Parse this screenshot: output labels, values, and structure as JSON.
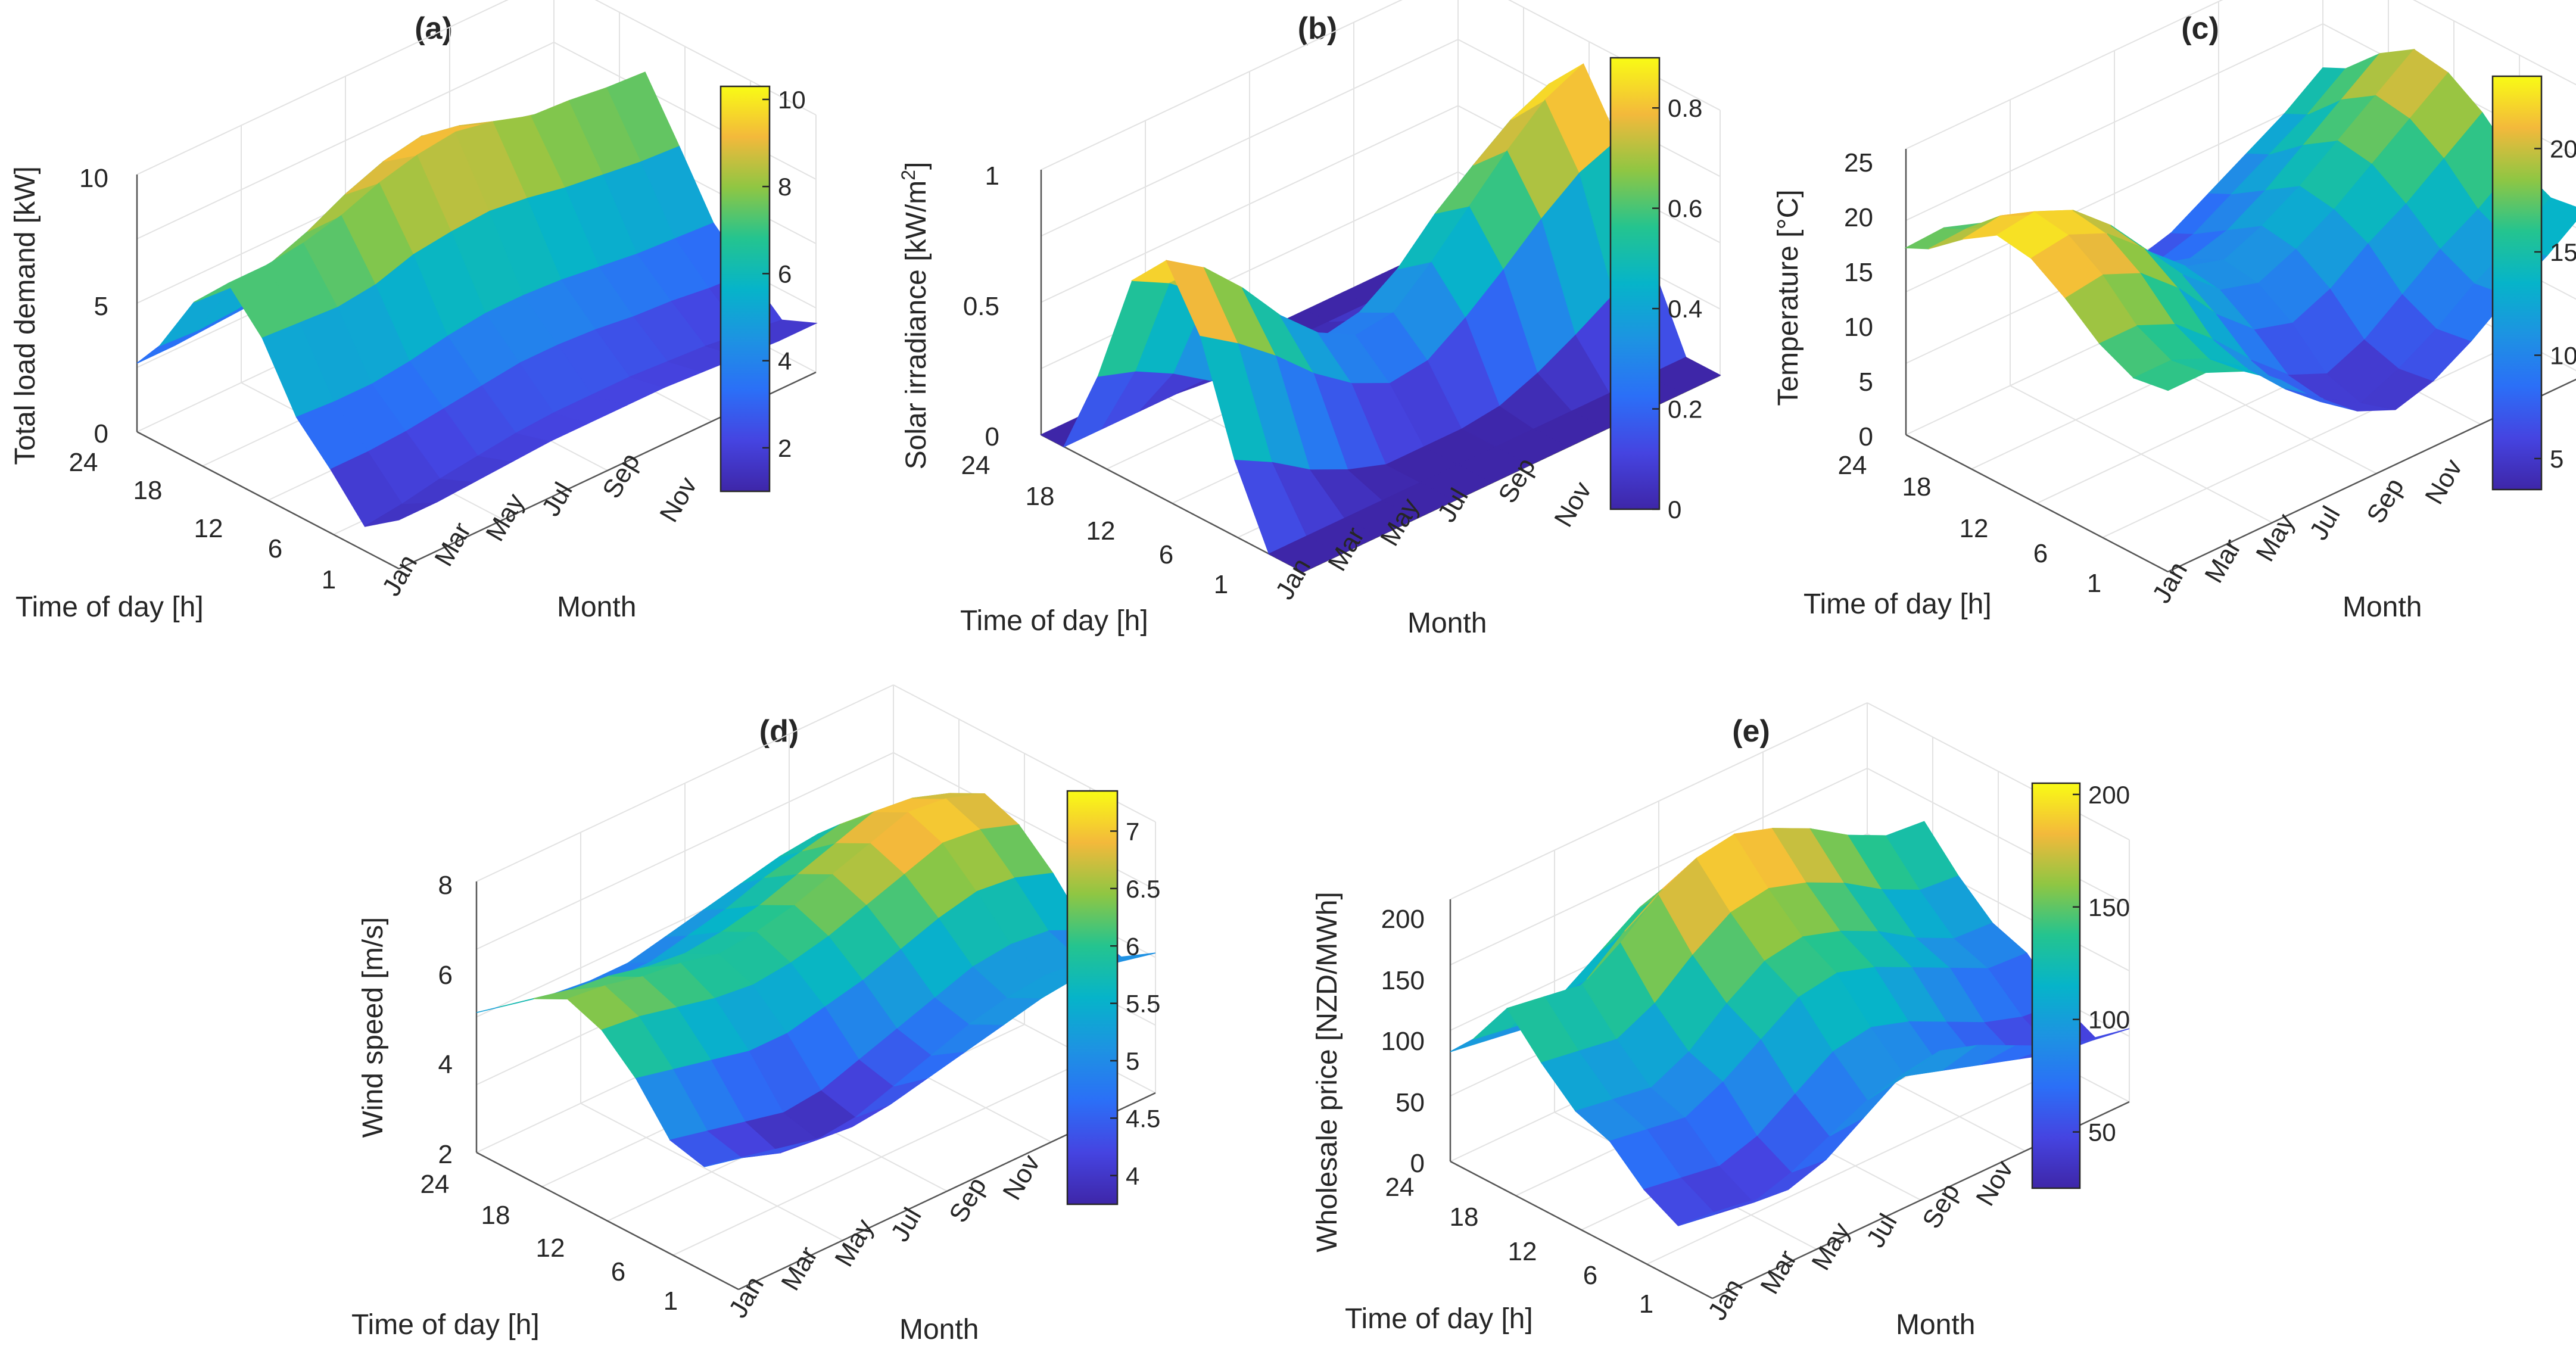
{
  "charts": [
    {
      "id": "a",
      "title": "(a)",
      "type": "surface3d",
      "zlabel": "Total load demand [kW]",
      "zlim": [
        0,
        10.5
      ],
      "zticks": [
        "0",
        "5",
        "10"
      ],
      "zticks_values": [
        0,
        5,
        10
      ],
      "colorbar_range": [
        1,
        10.3
      ],
      "colorbar_ticks": [
        "2",
        "4",
        "6",
        "8",
        "10"
      ],
      "colorbar_ticks_values": [
        2,
        4,
        6,
        8,
        10
      ]
    },
    {
      "id": "b",
      "title": "(b)",
      "type": "surface3d",
      "zlabel": "Solar irradiance [kW/m",
      "zlabel_sup": "2",
      "zlabel_end": "]",
      "zlim": [
        0,
        1.05
      ],
      "zticks": [
        "0",
        "0.5",
        "1"
      ],
      "zticks_values": [
        0,
        0.5,
        1
      ],
      "colorbar_range": [
        0,
        0.9
      ],
      "colorbar_ticks": [
        "0",
        "0.2",
        "0.4",
        "0.6",
        "0.8"
      ],
      "colorbar_ticks_values": [
        0,
        0.2,
        0.4,
        0.6,
        0.8
      ]
    },
    {
      "id": "c",
      "title": "(c)",
      "type": "surface3d",
      "zlabel": "Temperature [°C]",
      "zlim": [
        0,
        26
      ],
      "zticks": [
        "0",
        "5",
        "10",
        "15",
        "20",
        "25"
      ],
      "zticks_values": [
        0,
        5,
        10,
        15,
        20,
        25
      ],
      "colorbar_range": [
        3.5,
        23.5
      ],
      "colorbar_ticks": [
        "5",
        "10",
        "15",
        "20"
      ],
      "colorbar_ticks_values": [
        5,
        10,
        15,
        20
      ]
    },
    {
      "id": "d",
      "title": "(d)",
      "type": "surface3d",
      "zlabel": "Wind speed [m/s]",
      "zlim": [
        2,
        8.2
      ],
      "zticks": [
        "2",
        "4",
        "6",
        "8"
      ],
      "zticks_values": [
        2,
        4,
        6,
        8
      ],
      "colorbar_range": [
        3.75,
        7.35
      ],
      "colorbar_ticks": [
        "4",
        "4.5",
        "5",
        "5.5",
        "6",
        "6.5",
        "7"
      ],
      "colorbar_ticks_values": [
        4,
        4.5,
        5,
        5.5,
        6,
        6.5,
        7
      ]
    },
    {
      "id": "e",
      "title": "(e)",
      "type": "surface3d",
      "zlabel": "Wholesale price [NZD/MWh]",
      "zlim": [
        0,
        215
      ],
      "zticks": [
        "0",
        "50",
        "100",
        "150",
        "200"
      ],
      "zticks_values": [
        0,
        50,
        100,
        150,
        200
      ],
      "colorbar_range": [
        25,
        205
      ],
      "colorbar_ticks": [
        "50",
        "100",
        "150",
        "200"
      ],
      "colorbar_ticks_values": [
        50,
        100,
        150,
        200
      ]
    }
  ],
  "shared": {
    "xlabel": "Time of day [h]",
    "ylabel": "Month",
    "hour_ticks": [
      "24",
      "18",
      "12",
      "6",
      "1"
    ],
    "hour_ticks_values": [
      24,
      18,
      12,
      6,
      1
    ],
    "month_ticks": [
      "Jan",
      "Mar",
      "May",
      "Jul",
      "Sep",
      "Nov"
    ],
    "month_ticks_values": [
      1,
      3,
      5,
      7,
      9,
      11
    ],
    "colormap": "parula"
  },
  "chart_data": [
    {
      "panel": "a",
      "type": "surface3d",
      "title": "(a)",
      "x": "hour 1-24",
      "y": "month 1-12",
      "z": "Total load demand [kW]",
      "months": [
        1,
        2,
        3,
        4,
        5,
        6,
        7,
        8,
        9,
        10,
        11,
        12
      ],
      "hours": [
        1,
        4,
        7,
        10,
        13,
        16,
        19,
        22,
        24
      ],
      "values": [
        [
          2.0,
          1.0,
          2.6,
          4.0,
          6.5,
          8.0,
          6.5,
          4.0,
          2.8
        ],
        [
          2.0,
          1.2,
          2.6,
          3.9,
          6.4,
          8.0,
          6.4,
          3.9,
          2.8
        ],
        [
          2.1,
          1.5,
          2.7,
          3.9,
          6.3,
          8.2,
          6.6,
          4.0,
          2.9
        ],
        [
          2.2,
          1.7,
          2.9,
          4.1,
          6.5,
          8.6,
          7.2,
          4.3,
          3.0
        ],
        [
          2.3,
          1.9,
          3.1,
          4.4,
          7.0,
          9.2,
          8.0,
          4.7,
          3.1
        ],
        [
          2.3,
          2.0,
          3.3,
          4.6,
          7.2,
          9.6,
          8.6,
          5.0,
          3.2
        ],
        [
          2.3,
          2.0,
          3.3,
          4.6,
          7.3,
          9.8,
          8.9,
          5.0,
          3.2
        ],
        [
          2.3,
          2.0,
          3.2,
          4.5,
          7.1,
          9.5,
          8.6,
          4.9,
          3.1
        ],
        [
          2.2,
          1.9,
          3.0,
          4.3,
          6.8,
          9.0,
          8.0,
          4.6,
          3.0
        ],
        [
          2.1,
          1.8,
          2.9,
          4.1,
          6.6,
          8.9,
          7.6,
          4.4,
          2.9
        ],
        [
          2.0,
          1.6,
          2.7,
          4.0,
          6.4,
          8.7,
          7.2,
          4.2,
          2.8
        ],
        [
          2.0,
          1.4,
          2.6,
          3.9,
          6.3,
          8.6,
          7.0,
          4.1,
          2.8
        ]
      ]
    },
    {
      "panel": "b",
      "type": "surface3d",
      "title": "(b)",
      "x": "hour 1-24",
      "y": "month 1-12",
      "z": "Solar irradiance [kW/m2]",
      "months": [
        1,
        2,
        3,
        4,
        5,
        6,
        7,
        8,
        9,
        10,
        11,
        12
      ],
      "hours": [
        1,
        4,
        7,
        10,
        13,
        16,
        19,
        22,
        24
      ],
      "values": [
        [
          0.0,
          0.0,
          0.3,
          0.72,
          0.95,
          0.8,
          0.35,
          0.0,
          0.0
        ],
        [
          0.0,
          0.0,
          0.22,
          0.62,
          0.85,
          0.72,
          0.3,
          0.0,
          0.0
        ],
        [
          0.0,
          0.0,
          0.12,
          0.5,
          0.7,
          0.6,
          0.22,
          0.0,
          0.0
        ],
        [
          0.0,
          0.0,
          0.05,
          0.36,
          0.52,
          0.42,
          0.12,
          0.0,
          0.0
        ],
        [
          0.0,
          0.0,
          0.0,
          0.25,
          0.38,
          0.3,
          0.05,
          0.0,
          0.0
        ],
        [
          0.0,
          0.0,
          0.0,
          0.18,
          0.3,
          0.22,
          0.02,
          0.0,
          0.0
        ],
        [
          0.0,
          0.0,
          0.0,
          0.2,
          0.32,
          0.25,
          0.03,
          0.0,
          0.0
        ],
        [
          0.0,
          0.0,
          0.02,
          0.3,
          0.45,
          0.35,
          0.08,
          0.0,
          0.0
        ],
        [
          0.0,
          0.0,
          0.08,
          0.42,
          0.6,
          0.5,
          0.16,
          0.0,
          0.0
        ],
        [
          0.0,
          0.0,
          0.16,
          0.55,
          0.75,
          0.62,
          0.25,
          0.0,
          0.0
        ],
        [
          0.0,
          0.0,
          0.25,
          0.66,
          0.88,
          0.73,
          0.32,
          0.0,
          0.0
        ],
        [
          0.0,
          0.0,
          0.3,
          0.72,
          0.95,
          0.8,
          0.36,
          0.0,
          0.0
        ]
      ]
    },
    {
      "panel": "c",
      "type": "surface3d",
      "title": "(c)",
      "x": "hour 1-24",
      "y": "month 1-12",
      "z": "Temperature [°C]",
      "months": [
        1,
        2,
        3,
        4,
        5,
        6,
        7,
        8,
        9,
        10,
        11,
        12
      ],
      "hours": [
        1,
        4,
        7,
        10,
        13,
        16,
        19,
        22,
        24
      ],
      "values": [
        [
          16.5,
          16.0,
          17.5,
          20.0,
          22.0,
          22.5,
          20.5,
          18.0,
          17.0
        ],
        [
          16.5,
          16.0,
          17.5,
          20.5,
          22.5,
          23.0,
          21.0,
          18.2,
          17.2
        ],
        [
          15.0,
          14.5,
          16.0,
          19.0,
          21.0,
          21.5,
          19.5,
          17.0,
          16.0
        ],
        [
          12.5,
          12.0,
          13.0,
          16.0,
          18.0,
          18.5,
          16.5,
          14.5,
          13.5
        ],
        [
          9.0,
          8.5,
          9.5,
          12.0,
          14.0,
          14.5,
          12.5,
          11.0,
          10.0
        ],
        [
          6.5,
          6.0,
          6.5,
          9.0,
          11.0,
          11.5,
          10.0,
          8.5,
          7.5
        ],
        [
          5.0,
          4.0,
          5.0,
          8.0,
          10.0,
          10.5,
          9.0,
          7.0,
          6.0
        ],
        [
          6.0,
          5.5,
          6.5,
          9.5,
          11.5,
          12.0,
          10.0,
          8.0,
          7.0
        ],
        [
          8.0,
          7.5,
          9.0,
          12.0,
          13.5,
          14.0,
          12.0,
          10.0,
          9.0
        ],
        [
          10.5,
          10.0,
          11.5,
          14.0,
          16.0,
          16.5,
          14.5,
          12.0,
          11.0
        ],
        [
          12.5,
          12.0,
          13.5,
          16.5,
          18.5,
          19.0,
          17.0,
          14.0,
          13.0
        ],
        [
          15.0,
          14.5,
          16.0,
          19.0,
          21.0,
          21.5,
          19.5,
          16.5,
          15.5
        ]
      ]
    },
    {
      "panel": "d",
      "type": "surface3d",
      "title": "(d)",
      "x": "hour 1-24",
      "y": "month 1-12",
      "z": "Wind speed [m/s]",
      "months": [
        1,
        2,
        3,
        4,
        5,
        6,
        7,
        8,
        9,
        10,
        11,
        12
      ],
      "hours": [
        1,
        4,
        7,
        10,
        13,
        16,
        19,
        22,
        24
      ],
      "values": [
        [
          5.0,
          4.4,
          4.6,
          5.6,
          6.3,
          6.6,
          6.2,
          5.6,
          5.2
        ],
        [
          4.8,
          4.2,
          4.4,
          5.4,
          6.2,
          6.5,
          6.0,
          5.4,
          5.0
        ],
        [
          4.6,
          3.9,
          4.2,
          5.2,
          6.0,
          6.3,
          5.9,
          5.2,
          4.8
        ],
        [
          4.5,
          3.8,
          4.0,
          5.0,
          5.8,
          6.2,
          5.7,
          5.0,
          4.7
        ],
        [
          4.6,
          3.9,
          4.1,
          5.0,
          5.7,
          6.0,
          5.6,
          5.0,
          4.7
        ],
        [
          4.8,
          4.2,
          4.4,
          5.2,
          5.8,
          6.1,
          5.7,
          5.2,
          4.9
        ],
        [
          5.0,
          4.5,
          4.7,
          5.4,
          6.0,
          6.3,
          5.9,
          5.4,
          5.1
        ],
        [
          5.2,
          4.8,
          5.0,
          5.7,
          6.3,
          6.6,
          6.2,
          5.7,
          5.3
        ],
        [
          5.4,
          5.0,
          5.3,
          6.0,
          6.6,
          6.9,
          6.5,
          5.9,
          5.5
        ],
        [
          5.5,
          5.1,
          5.4,
          6.2,
          6.9,
          7.2,
          6.8,
          6.1,
          5.6
        ],
        [
          5.4,
          5.0,
          5.3,
          6.1,
          6.8,
          7.1,
          6.7,
          6.0,
          5.5
        ],
        [
          5.2,
          4.7,
          4.9,
          5.8,
          6.5,
          6.8,
          6.4,
          5.8,
          5.3
        ]
      ]
    },
    {
      "panel": "e",
      "type": "surface3d",
      "title": "(e)",
      "x": "hour 1-24",
      "y": "month 1-12",
      "z": "Wholesale price [NZD/MWh]",
      "months": [
        1,
        2,
        3,
        4,
        5,
        6,
        7,
        8,
        9,
        10,
        11,
        12
      ],
      "hours": [
        1,
        4,
        7,
        10,
        13,
        16,
        19,
        22,
        24
      ],
      "values": [
        [
          70,
          45,
          60,
          85,
          95,
          120,
          150,
          110,
          90
        ],
        [
          65,
          40,
          55,
          80,
          90,
          115,
          145,
          105,
          85
        ],
        [
          60,
          35,
          50,
          75,
          85,
          110,
          140,
          100,
          80
        ],
        [
          70,
          45,
          60,
          90,
          100,
          125,
          160,
          115,
          95
        ],
        [
          90,
          60,
          80,
          110,
          125,
          150,
          185,
          140,
          115
        ],
        [
          110,
          75,
          100,
          130,
          145,
          170,
          200,
          160,
          135
        ],
        [
          115,
          80,
          105,
          135,
          150,
          175,
          205,
          165,
          140
        ],
        [
          105,
          70,
          95,
          125,
          140,
          165,
          195,
          155,
          130
        ],
        [
          90,
          60,
          80,
          110,
          125,
          150,
          180,
          140,
          115
        ],
        [
          75,
          50,
          65,
          95,
          105,
          130,
          160,
          120,
          100
        ],
        [
          65,
          40,
          55,
          80,
          90,
          115,
          145,
          105,
          85
        ],
        [
          60,
          38,
          52,
          78,
          88,
          112,
          142,
          102,
          82
        ]
      ]
    }
  ]
}
